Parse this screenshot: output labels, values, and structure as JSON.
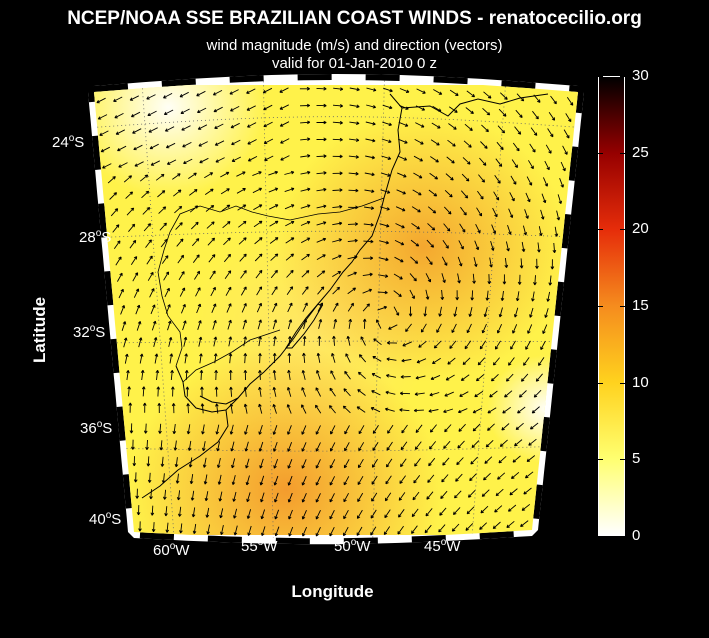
{
  "title": "NCEP/NOAA SSE BRAZILIAN COAST WINDS - renatocecilio.org",
  "subtitle1": "wind magnitude (m/s) and direction (vectors)",
  "subtitle2": "valid for 01-Jan-2010  0 z",
  "xlabel": "Longitude",
  "ylabel": "Latitude",
  "lat_labels": [
    {
      "deg": "24",
      "hemi": "S"
    },
    {
      "deg": "28",
      "hemi": "S"
    },
    {
      "deg": "32",
      "hemi": "S"
    },
    {
      "deg": "36",
      "hemi": "S"
    },
    {
      "deg": "40",
      "hemi": "S"
    }
  ],
  "lon_labels": [
    {
      "deg": "60",
      "hemi": "W"
    },
    {
      "deg": "55",
      "hemi": "W"
    },
    {
      "deg": "50",
      "hemi": "W"
    },
    {
      "deg": "45",
      "hemi": "W"
    }
  ],
  "colorbar": {
    "range": [
      0,
      30
    ],
    "ticks": [
      "0",
      "5",
      "10",
      "15",
      "20",
      "25",
      "30"
    ],
    "colors": [
      "#ffffff",
      "#ffff70",
      "#ffd21e",
      "#f58c1e",
      "#e62d0a",
      "#960000",
      "#000000"
    ]
  }
}
